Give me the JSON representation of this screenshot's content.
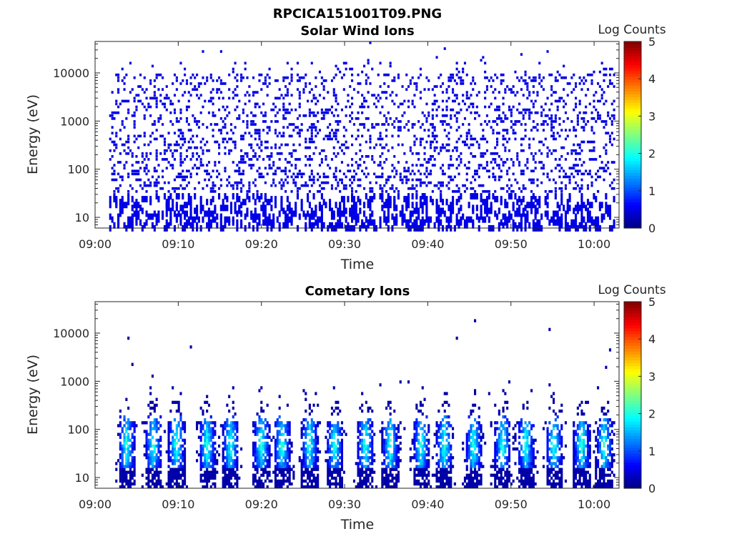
{
  "figure": {
    "title": "RPCICA151001T09.PNG"
  },
  "chart_data": [
    {
      "type": "heatmap",
      "title": "Solar Wind Ions",
      "xlabel": "Time",
      "ylabel": "Energy (eV)",
      "x_ticks": [
        "09:00",
        "09:10",
        "09:20",
        "09:30",
        "09:40",
        "09:50",
        "10:00"
      ],
      "x_range_minutes": [
        0,
        63
      ],
      "y_ticks": [
        "10",
        "100",
        "1000",
        "10000"
      ],
      "y_scale": "log",
      "y_range_eV": [
        6,
        45000
      ],
      "data_start_minute": 1.8,
      "colorbar": {
        "label": "Log Counts",
        "ticks": [
          "0",
          "1",
          "2",
          "3",
          "4",
          "5"
        ],
        "range": [
          0,
          5
        ],
        "colormap": "jet"
      },
      "dominant_level": 0.1,
      "description_pattern": "sparse low-count pixels across all energies and times"
    },
    {
      "type": "heatmap",
      "title": "Cometary Ions",
      "xlabel": "Time",
      "ylabel": "Energy (eV)",
      "x_ticks": [
        "09:00",
        "09:10",
        "09:20",
        "09:30",
        "09:40",
        "09:50",
        "10:00"
      ],
      "x_range_minutes": [
        0,
        63
      ],
      "y_ticks": [
        "10",
        "100",
        "1000",
        "10000"
      ],
      "y_scale": "log",
      "y_range_eV": [
        6,
        45000
      ],
      "colorbar": {
        "label": "Log Counts",
        "ticks": [
          "0",
          "1",
          "2",
          "3",
          "4",
          "5"
        ],
        "range": [
          0,
          5
        ],
        "colormap": "jet"
      },
      "burst_minutes": [
        3.8,
        7.0,
        9.8,
        13.5,
        16.3,
        20.0,
        22.5,
        25.8,
        28.8,
        32.5,
        35.5,
        39.2,
        42.0,
        45.5,
        49.0,
        51.8,
        55.2,
        58.5,
        61.2
      ],
      "burst_peak_energy_eV": 50,
      "burst_peak_log_counts": 1.9
    }
  ]
}
